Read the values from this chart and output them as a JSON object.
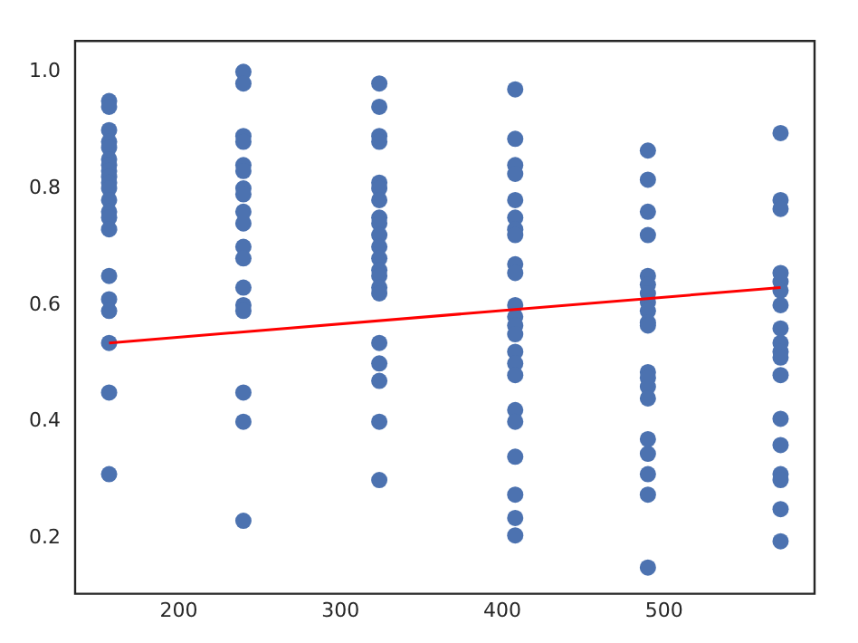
{
  "chart_data": {
    "type": "scatter",
    "xlim": [
      136,
      593
    ],
    "xticks": [
      200,
      300,
      400,
      500
    ],
    "ylim": [
      0.105,
      1.053
    ],
    "yticks": [
      0.2,
      0.4,
      0.6,
      0.8,
      {
        "value": 1,
        "label": "1.0"
      }
    ],
    "grid": false,
    "legend": false,
    "marker": "circle",
    "series": [
      {
        "type": "scatter",
        "color": "#4c72b0",
        "x": [
          157,
          157,
          157,
          157,
          157,
          157,
          157,
          157,
          157,
          157,
          157,
          157,
          157,
          157,
          157,
          157,
          157,
          157,
          157,
          157,
          157,
          240,
          240,
          240,
          240,
          240,
          240,
          240,
          240,
          240,
          240,
          240,
          240,
          240,
          240,
          240,
          240,
          240,
          240,
          324,
          324,
          324,
          324,
          324,
          324,
          324,
          324,
          324,
          324,
          324,
          324,
          324,
          324,
          324,
          324,
          324,
          324,
          324,
          324,
          324,
          408,
          408,
          408,
          408,
          408,
          408,
          408,
          408,
          408,
          408,
          408,
          408,
          408,
          408,
          408,
          408,
          408,
          408,
          408,
          408,
          408,
          408,
          408,
          490,
          490,
          490,
          490,
          490,
          490,
          490,
          490,
          490,
          490,
          490,
          490,
          490,
          490,
          490,
          490,
          490,
          490,
          490,
          490,
          572,
          572,
          572,
          572,
          572,
          572,
          572,
          572,
          572,
          572,
          572,
          572,
          572,
          572,
          572,
          572,
          572,
          572
        ],
        "values": [
          0.95,
          0.94,
          0.9,
          0.88,
          0.87,
          0.85,
          0.84,
          0.83,
          0.82,
          0.81,
          0.8,
          0.78,
          0.76,
          0.75,
          0.73,
          0.65,
          0.61,
          0.59,
          0.535,
          0.45,
          0.31,
          1.0,
          0.98,
          0.89,
          0.88,
          0.84,
          0.83,
          0.8,
          0.79,
          0.76,
          0.74,
          0.7,
          0.68,
          0.63,
          0.6,
          0.59,
          0.45,
          0.4,
          0.23,
          0.98,
          0.94,
          0.89,
          0.88,
          0.81,
          0.8,
          0.78,
          0.75,
          0.74,
          0.72,
          0.7,
          0.68,
          0.66,
          0.65,
          0.63,
          0.62,
          0.535,
          0.5,
          0.47,
          0.4,
          0.3,
          0.97,
          0.885,
          0.84,
          0.825,
          0.78,
          0.75,
          0.73,
          0.72,
          0.67,
          0.655,
          0.6,
          0.58,
          0.565,
          0.55,
          0.52,
          0.5,
          0.48,
          0.42,
          0.4,
          0.34,
          0.275,
          0.235,
          0.205,
          0.865,
          0.815,
          0.76,
          0.72,
          0.65,
          0.635,
          0.62,
          0.605,
          0.59,
          0.57,
          0.565,
          0.485,
          0.475,
          0.46,
          0.44,
          0.37,
          0.345,
          0.31,
          0.275,
          0.15,
          0.895,
          0.78,
          0.765,
          0.655,
          0.64,
          0.625,
          0.6,
          0.56,
          0.535,
          0.52,
          0.51,
          0.48,
          0.405,
          0.36,
          0.31,
          0.3,
          0.25,
          0.195
        ]
      },
      {
        "type": "line",
        "color": "#ff0000",
        "marker": "none",
        "x": [
          157,
          572
        ],
        "values": [
          0.535,
          0.63
        ]
      }
    ]
  }
}
